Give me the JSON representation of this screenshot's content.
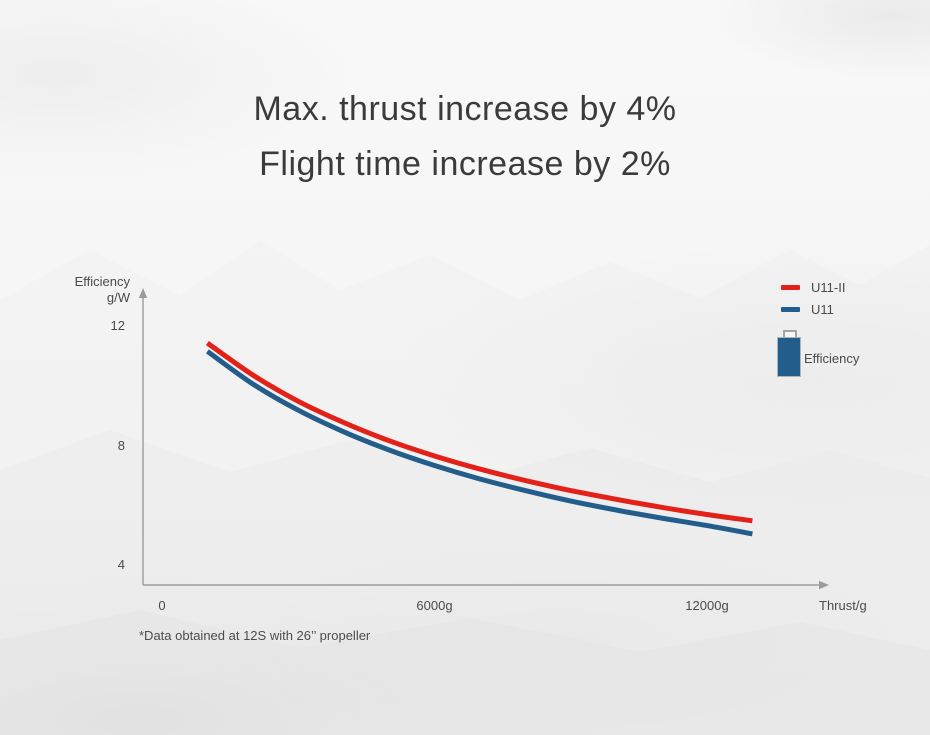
{
  "title": {
    "line1": "Max. thrust increase by 4%",
    "line2": "Flight time increase by 2%"
  },
  "colors": {
    "red": "#e32119",
    "blue": "#235d8b",
    "axis": "#9b9b9b",
    "text": "#4a4a4a"
  },
  "legend": {
    "items": [
      {
        "label": "U11-II",
        "color": "#e32119"
      },
      {
        "label": "U11",
        "color": "#235d8b"
      }
    ],
    "battery_label": "Efficiency"
  },
  "axis": {
    "y_title_line1": "Efficiency",
    "y_title_line2": "g/W",
    "x_title": "Thrust/g"
  },
  "footnote": "*Data obtained at 12S with 26’’ propeller",
  "chart_data": {
    "type": "line",
    "title": "Efficiency vs Thrust",
    "xlabel": "Thrust/g",
    "ylabel": "Efficiency g/W",
    "x_range": [
      0,
      14500
    ],
    "y_range": [
      4,
      12.7
    ],
    "grid": false,
    "legend_position": "top-right",
    "x_ticks": [
      {
        "value": 0,
        "label": "0"
      },
      {
        "value": 6000,
        "label": "6000g"
      },
      {
        "value": 12000,
        "label": "12000g"
      }
    ],
    "y_ticks": [
      {
        "value": 12,
        "label": "12"
      },
      {
        "value": 8,
        "label": "8"
      },
      {
        "value": 4,
        "label": "4"
      }
    ],
    "x": [
      1000,
      2000,
      3000,
      4000,
      5000,
      6000,
      7000,
      8000,
      9000,
      10000,
      11000,
      12000,
      13000
    ],
    "series": [
      {
        "name": "U11-II",
        "color": "#e32119",
        "values": [
          11.43,
          10.36,
          9.48,
          8.77,
          8.16,
          7.65,
          7.21,
          6.83,
          6.49,
          6.2,
          5.93,
          5.69,
          5.48
        ]
      },
      {
        "name": "U11",
        "color": "#235d8b",
        "values": [
          11.15,
          10.06,
          9.18,
          8.46,
          7.85,
          7.33,
          6.88,
          6.49,
          6.14,
          5.84,
          5.57,
          5.32,
          5.04
        ]
      }
    ],
    "footnote": "*Data obtained at 12S with 26’’ propeller"
  }
}
